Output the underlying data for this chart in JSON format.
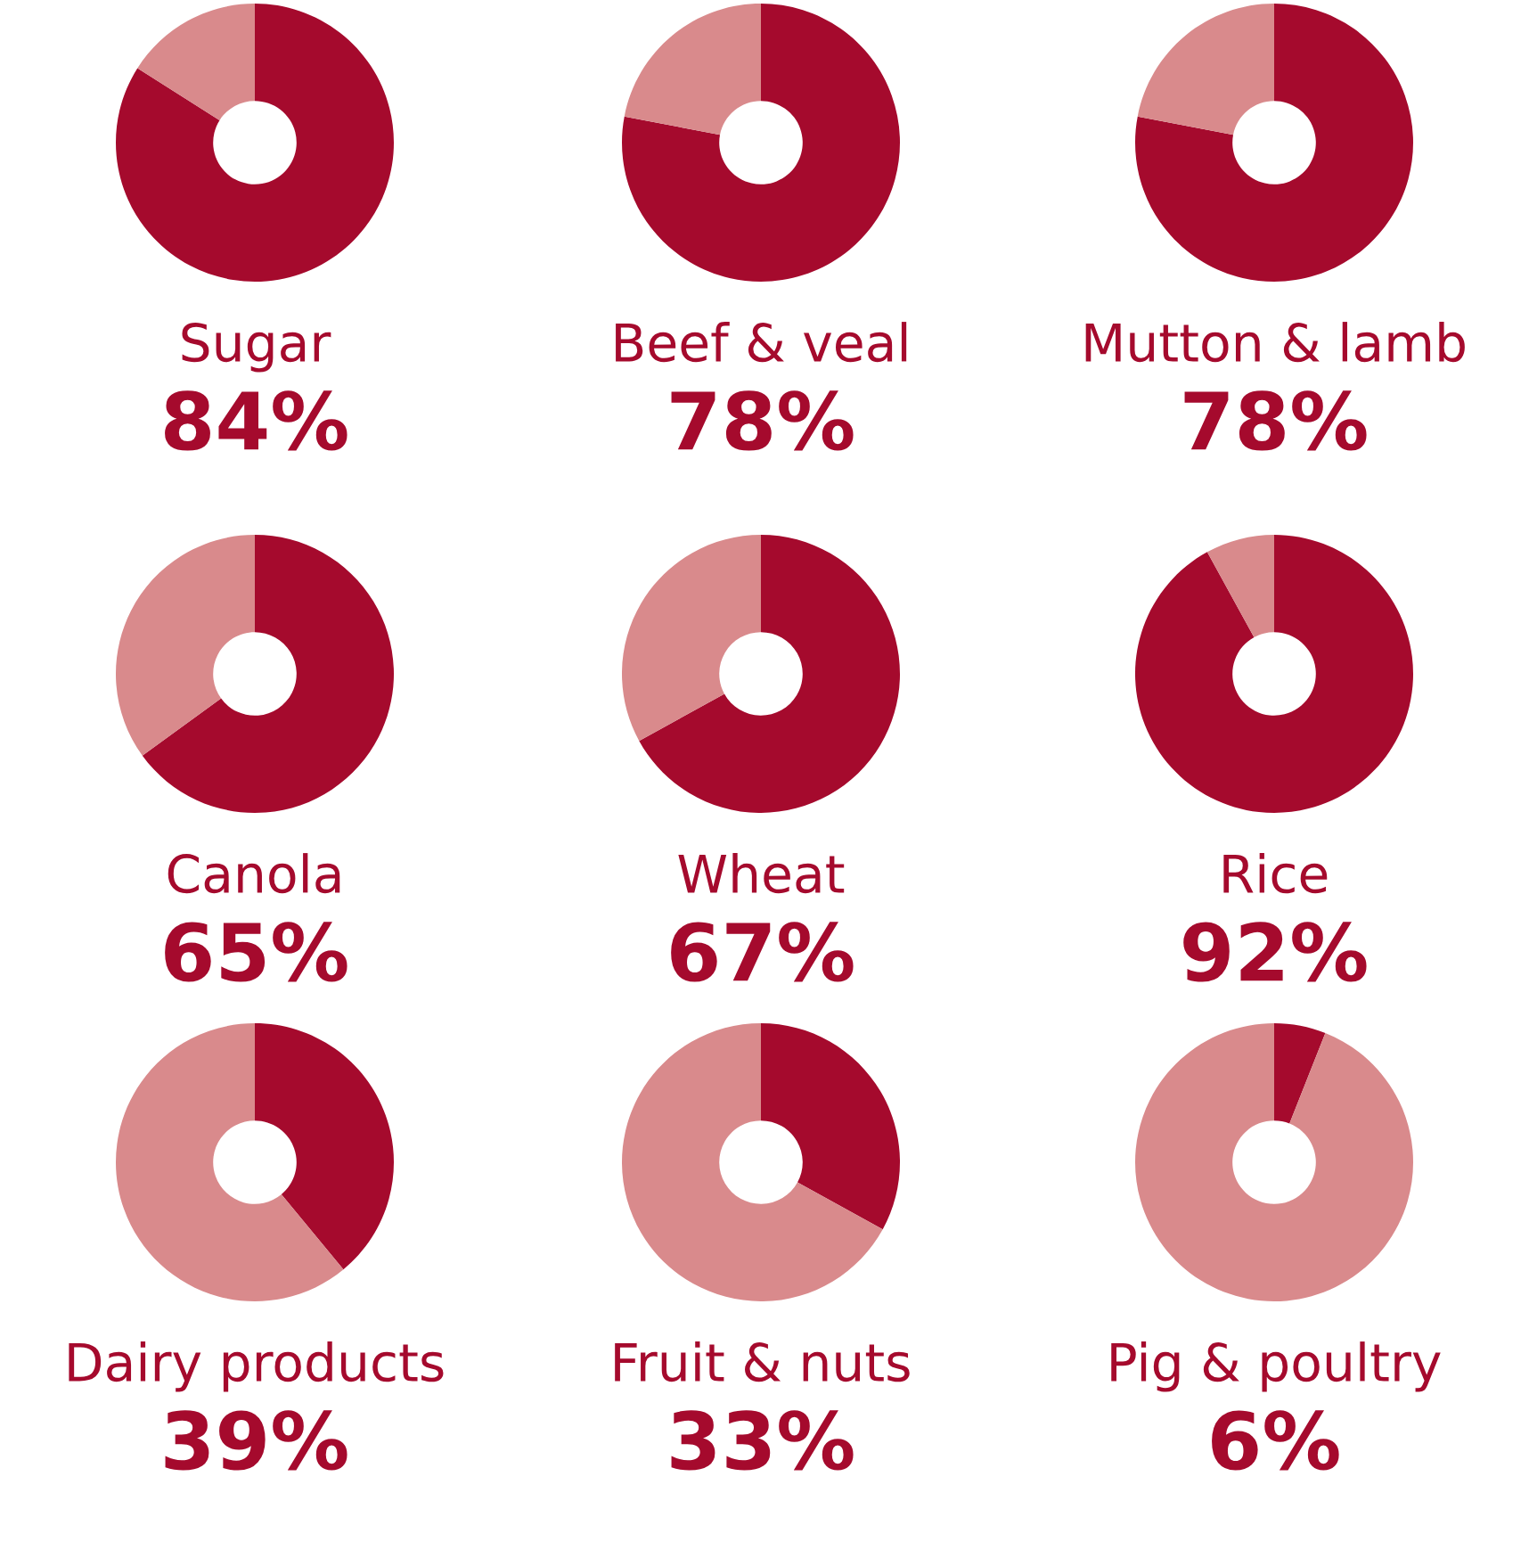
{
  "chart_data": [
    {
      "type": "donut",
      "title": "Sugar",
      "categories": [
        null,
        null
      ],
      "values": [
        84,
        16
      ],
      "colors": [
        "#a50a2d",
        "#d98a8c"
      ],
      "annotations": [
        "84%"
      ]
    },
    {
      "type": "donut",
      "title": "Beef & veal",
      "categories": [
        null,
        null
      ],
      "values": [
        78,
        22
      ],
      "colors": [
        "#a50a2d",
        "#d98a8c"
      ],
      "annotations": [
        "78%"
      ]
    },
    {
      "type": "donut",
      "title": "Mutton & lamb",
      "categories": [
        null,
        null
      ],
      "values": [
        78,
        22
      ],
      "colors": [
        "#a50a2d",
        "#d98a8c"
      ],
      "annotations": [
        "78%"
      ]
    },
    {
      "type": "donut",
      "title": "Canola",
      "categories": [
        null,
        null
      ],
      "values": [
        65,
        35
      ],
      "colors": [
        "#a50a2d",
        "#d98a8c"
      ],
      "annotations": [
        "65%"
      ]
    },
    {
      "type": "donut",
      "title": "Wheat",
      "categories": [
        null,
        null
      ],
      "values": [
        67,
        33
      ],
      "colors": [
        "#a50a2d",
        "#d98a8c"
      ],
      "annotations": [
        "67%"
      ]
    },
    {
      "type": "donut",
      "title": "Rice",
      "categories": [
        null,
        null
      ],
      "values": [
        92,
        8
      ],
      "colors": [
        "#a50a2d",
        "#d98a8c"
      ],
      "annotations": [
        "92%"
      ]
    },
    {
      "type": "donut",
      "title": "Dairy products",
      "categories": [
        null,
        null
      ],
      "values": [
        39,
        61
      ],
      "colors": [
        "#a50a2d",
        "#d98a8c"
      ],
      "annotations": [
        "39%"
      ]
    },
    {
      "type": "donut",
      "title": "Fruit & nuts",
      "categories": [
        null,
        null
      ],
      "values": [
        33,
        67
      ],
      "colors": [
        "#a50a2d",
        "#d98a8c"
      ],
      "annotations": [
        "33%"
      ]
    },
    {
      "type": "donut",
      "title": "Pig & poultry",
      "categories": [
        null,
        null
      ],
      "values": [
        6,
        94
      ],
      "colors": [
        "#a50a2d",
        "#d98a8c"
      ],
      "annotations": [
        "6%"
      ]
    }
  ]
}
